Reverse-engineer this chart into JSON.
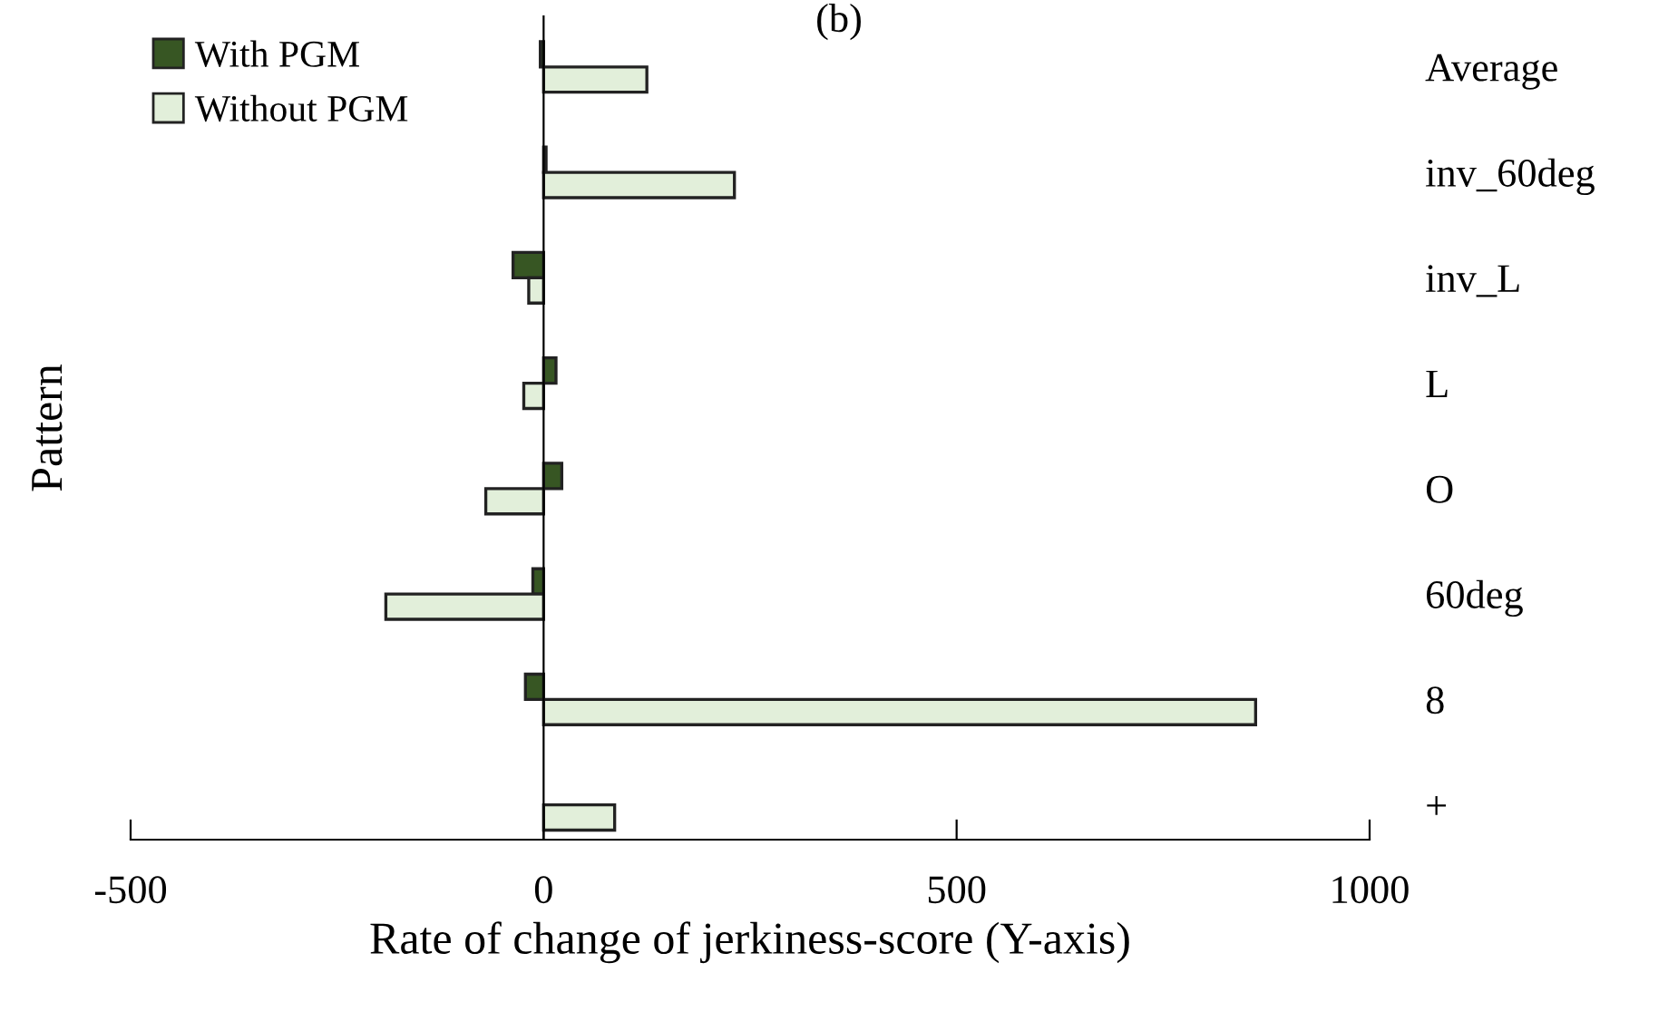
{
  "chart_data": {
    "type": "bar",
    "orientation": "horizontal",
    "title": "(b)",
    "xlabel": "Rate of change of jerkiness-score (Y-axis)",
    "ylabel": "Pattern",
    "categories": [
      "Average",
      "inv_60deg",
      "inv_L",
      "L",
      "O",
      "60deg",
      "8",
      "+"
    ],
    "series": [
      {
        "name": "With PGM",
        "color": "#375623",
        "values": [
          -4,
          3,
          -37,
          15,
          22,
          -13,
          -22,
          null
        ]
      },
      {
        "name": "Without PGM",
        "color": "#e2efda",
        "values": [
          125,
          231,
          -18,
          -24,
          -70,
          -191,
          862,
          86
        ]
      }
    ],
    "xlim": [
      -500,
      1000
    ],
    "xticks": [
      -500,
      0,
      500,
      1000
    ],
    "legend": "top left"
  }
}
